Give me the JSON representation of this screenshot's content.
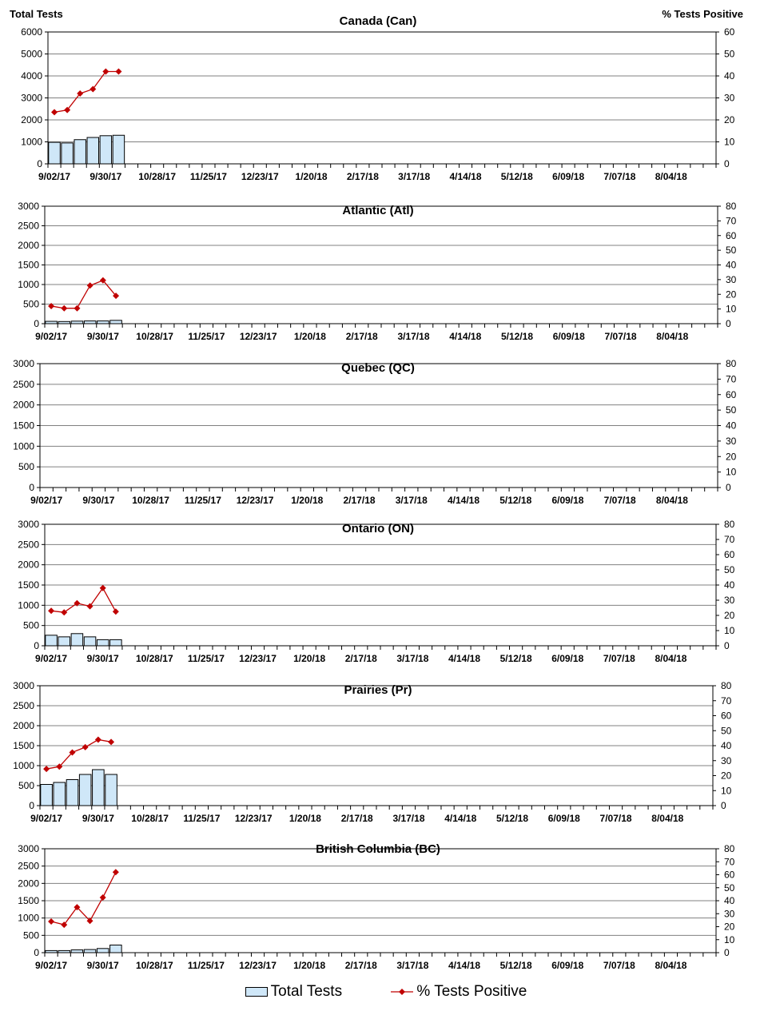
{
  "header": {
    "left_axis_title": "Total Tests",
    "right_axis_title": "% Tests Positive"
  },
  "legend": {
    "bars_label": "Total Tests",
    "line_label": "% Tests Positive"
  },
  "colors": {
    "bar_fill": "#cfe7f8",
    "bar_stroke": "#000000",
    "line": "#c00000",
    "grid": "#808080"
  },
  "x_tick_labels": [
    "9/02/17",
    "9/30/17",
    "10/28/17",
    "11/25/17",
    "12/23/17",
    "1/20/18",
    "2/17/18",
    "3/17/18",
    "4/14/18",
    "5/12/18",
    "6/09/18",
    "7/07/18",
    "8/04/18"
  ],
  "chart_data": [
    {
      "type": "bar+line",
      "title": "Canada (Can)",
      "weeks": [
        "9/02/17",
        "9/09/17",
        "9/16/17",
        "9/23/17",
        "9/30/17",
        "10/07/17"
      ],
      "series": [
        {
          "name": "Total Tests",
          "axis": "left",
          "values": [
            980,
            950,
            1100,
            1200,
            1280,
            1300
          ]
        },
        {
          "name": "% Tests Positive",
          "axis": "right",
          "values": [
            23.5,
            24.5,
            32,
            34,
            42,
            42
          ]
        }
      ],
      "ylim_left": [
        0,
        6000
      ],
      "yticks_left": [
        0,
        1000,
        2000,
        3000,
        4000,
        5000,
        6000
      ],
      "ylim_right": [
        0,
        60
      ],
      "yticks_right": [
        0,
        10,
        20,
        30,
        40,
        50,
        60
      ]
    },
    {
      "type": "bar+line",
      "title": "Atlantic (Atl)",
      "weeks": [
        "9/02/17",
        "9/09/17",
        "9/16/17",
        "9/23/17",
        "9/30/17",
        "10/07/17"
      ],
      "series": [
        {
          "name": "Total Tests",
          "axis": "left",
          "values": [
            60,
            55,
            65,
            70,
            70,
            85
          ]
        },
        {
          "name": "% Tests Positive",
          "axis": "right",
          "values": [
            12,
            10.5,
            10.5,
            26,
            29.5,
            19
          ]
        }
      ],
      "ylim_left": [
        0,
        3000
      ],
      "yticks_left": [
        0,
        500,
        1000,
        1500,
        2000,
        2500,
        3000
      ],
      "ylim_right": [
        0,
        80
      ],
      "yticks_right": [
        0,
        10,
        20,
        30,
        40,
        50,
        60,
        70,
        80
      ]
    },
    {
      "type": "bar+line",
      "title": "Quebec (QC)",
      "weeks": [],
      "series": [
        {
          "name": "Total Tests",
          "axis": "left",
          "values": []
        },
        {
          "name": "% Tests Positive",
          "axis": "right",
          "values": []
        }
      ],
      "ylim_left": [
        0,
        3000
      ],
      "yticks_left": [
        0,
        500,
        1000,
        1500,
        2000,
        2500,
        3000
      ],
      "ylim_right": [
        0,
        80
      ],
      "yticks_right": [
        0,
        10,
        20,
        30,
        40,
        50,
        60,
        70,
        80
      ]
    },
    {
      "type": "bar+line",
      "title": "Ontario (ON)",
      "weeks": [
        "9/02/17",
        "9/09/17",
        "9/16/17",
        "9/23/17",
        "9/30/17",
        "10/07/17"
      ],
      "series": [
        {
          "name": "Total Tests",
          "axis": "left",
          "values": [
            260,
            220,
            300,
            220,
            150,
            150
          ]
        },
        {
          "name": "% Tests Positive",
          "axis": "right",
          "values": [
            23,
            22,
            28,
            26,
            38,
            22.5
          ]
        }
      ],
      "ylim_left": [
        0,
        3000
      ],
      "yticks_left": [
        0,
        500,
        1000,
        1500,
        2000,
        2500,
        3000
      ],
      "ylim_right": [
        0,
        80
      ],
      "yticks_right": [
        0,
        10,
        20,
        30,
        40,
        50,
        60,
        70,
        80
      ]
    },
    {
      "type": "bar+line",
      "title": "Prairies (Pr)",
      "weeks": [
        "9/02/17",
        "9/09/17",
        "9/16/17",
        "9/23/17",
        "9/30/17",
        "10/07/17"
      ],
      "series": [
        {
          "name": "Total Tests",
          "axis": "left",
          "values": [
            530,
            580,
            650,
            780,
            900,
            780
          ]
        },
        {
          "name": "% Tests Positive",
          "axis": "right",
          "values": [
            24.5,
            26,
            35.5,
            39,
            44,
            42.5
          ]
        }
      ],
      "ylim_left": [
        0,
        3000
      ],
      "yticks_left": [
        0,
        500,
        1000,
        1500,
        2000,
        2500,
        3000
      ],
      "ylim_right": [
        0,
        80
      ],
      "yticks_right": [
        0,
        10,
        20,
        30,
        40,
        50,
        60,
        70,
        80
      ]
    },
    {
      "type": "bar+line",
      "title": "British Columbia (BC)",
      "weeks": [
        "9/02/17",
        "9/09/17",
        "9/16/17",
        "9/23/17",
        "9/30/17",
        "10/07/17"
      ],
      "series": [
        {
          "name": "Total Tests",
          "axis": "left",
          "values": [
            60,
            60,
            80,
            90,
            120,
            220
          ]
        },
        {
          "name": "% Tests Positive",
          "axis": "right",
          "values": [
            24,
            21.5,
            35,
            24.5,
            42.5,
            62
          ]
        }
      ],
      "ylim_left": [
        0,
        3000
      ],
      "yticks_left": [
        0,
        500,
        1000,
        1500,
        2000,
        2500,
        3000
      ],
      "ylim_right": [
        0,
        80
      ],
      "yticks_right": [
        0,
        10,
        20,
        30,
        40,
        50,
        60,
        70,
        80
      ]
    }
  ]
}
